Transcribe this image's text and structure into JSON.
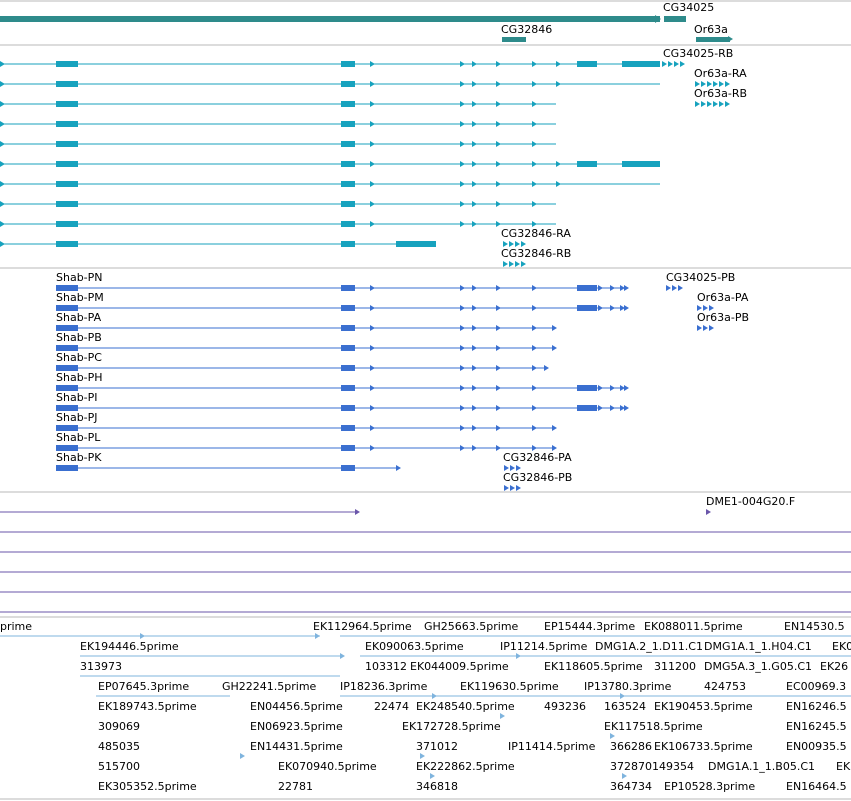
{
  "app": {
    "name": "genome-browser-track-view"
  },
  "colors": {
    "gene": "#2E8B8B",
    "transcript": "#17A2BE",
    "protein": "#3A6FD0",
    "sequence": "#6A56AA",
    "est": "#7FB4DE",
    "separator": "#B8B8B8"
  },
  "tracks": [
    {
      "id": "gene",
      "labels": [
        {
          "text": "CG34025",
          "slot": 0
        },
        {
          "text": "CG32846",
          "slot": 1
        },
        {
          "text": "Or63a",
          "slot": 2
        }
      ]
    },
    {
      "id": "transcript",
      "left_labels": [],
      "right_labels": [
        {
          "text": "CG34025-RB",
          "slot": 0
        },
        {
          "text": "Or63a-RA",
          "slot": 1
        },
        {
          "text": "Or63a-RB",
          "slot": 2
        },
        {
          "text": "CG32846-RA",
          "slot": 3
        },
        {
          "text": "CG32846-RB",
          "slot": 4
        }
      ]
    },
    {
      "id": "protein",
      "left_labels": [
        {
          "text": "Shab-PN",
          "slot": 0
        },
        {
          "text": "Shab-PM",
          "slot": 1
        },
        {
          "text": "Shab-PA",
          "slot": 2
        },
        {
          "text": "Shab-PB",
          "slot": 3
        },
        {
          "text": "Shab-PC",
          "slot": 4
        },
        {
          "text": "Shab-PH",
          "slot": 5
        },
        {
          "text": "Shab-PI",
          "slot": 6
        },
        {
          "text": "Shab-PJ",
          "slot": 7
        },
        {
          "text": "Shab-PL",
          "slot": 8
        },
        {
          "text": "Shab-PK",
          "slot": 9
        }
      ],
      "right_labels": [
        {
          "text": "CG34025-PB",
          "slot": 0
        },
        {
          "text": "Or63a-PA",
          "slot": 1
        },
        {
          "text": "Or63a-PB",
          "slot": 2
        },
        {
          "text": "CG32846-PA",
          "slot": 3
        },
        {
          "text": "CG32846-PB",
          "slot": 4
        }
      ]
    },
    {
      "id": "sequence",
      "labels": [
        {
          "text": "DME1-004G20.F",
          "slot": 0
        }
      ]
    },
    {
      "id": "est",
      "labels": [
        "prime",
        "EK112964.5prime",
        "GH25663.5prime",
        "EP15444.3prime",
        "EK088011.5prime",
        "EN14530.5",
        "EK194446.5prime",
        "EK090063.5prime",
        "IP11214.5prime",
        "DMG1A.2_1.D11.C1",
        "DMG1A.1_1.H04.C1",
        "EK0",
        "313973",
        "103312",
        "EK044009.5prime",
        "EK118605.5prime",
        "311200",
        "DMG5A.3_1.G05.C1",
        "EK26",
        "EP07645.3prime",
        "GH22241.5prime",
        "IP18236.3prime",
        "EK119630.5prime",
        "IP13780.3prime",
        "424753",
        "EC00969.3",
        "EK189743.5prime",
        "EN04456.5prime",
        "22474",
        "EK248540.5prime",
        "493236",
        "163524",
        "EK190453.5prime",
        "EN16246.5",
        "309069",
        "EN06923.5prime",
        "EK172728.5prime",
        "EK117518.5prime",
        "EN16245.5",
        "485035",
        "EN14431.5prime",
        "371012",
        "IP11414.5prime",
        "366286",
        "EK106733.5prime",
        "EN00935.5",
        "515700",
        "EK070940.5prime",
        "EK222862.5prime",
        "372870149354",
        "DMG1A.1_1.B05.C1",
        "EK1",
        "EK305352.5prime",
        "22781",
        "346818",
        "364734",
        "EP10528.3prime",
        "EN16464.5"
      ]
    }
  ]
}
